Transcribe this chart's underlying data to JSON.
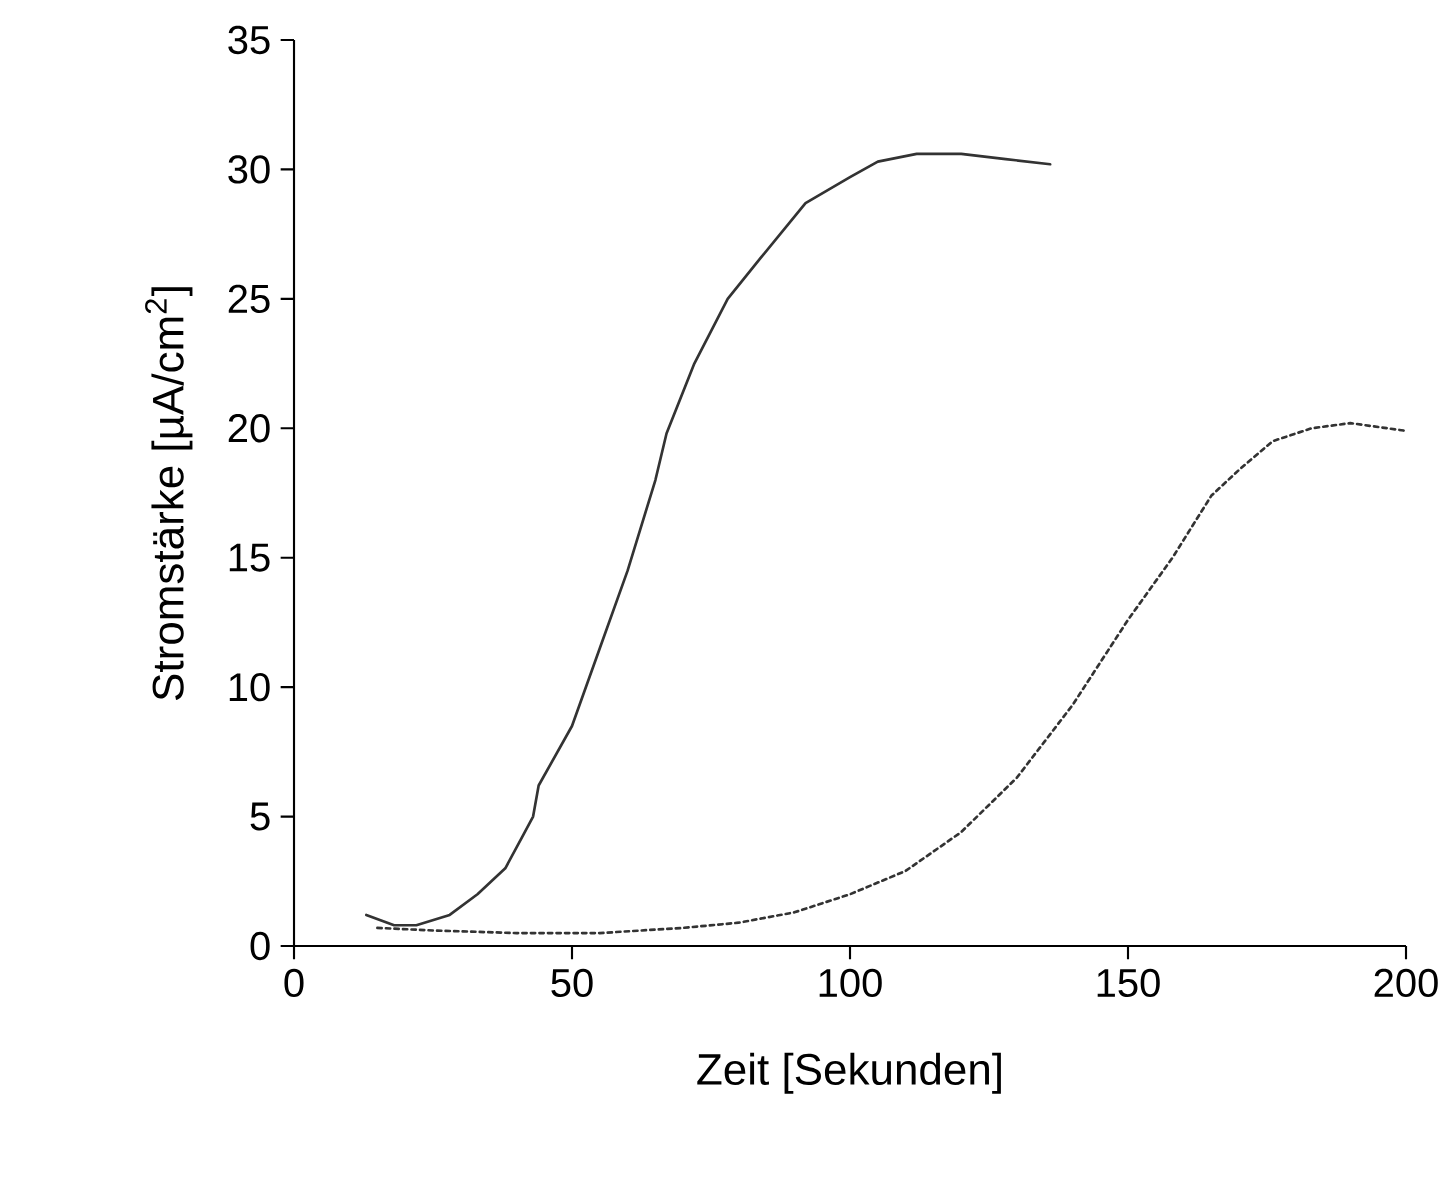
{
  "chart_data": {
    "type": "line",
    "xlabel": "Zeit [Sekunden]",
    "ylabel": "Stromstärke [µA/cm$^{2}$]",
    "xlim": [
      0,
      200
    ],
    "ylim": [
      0,
      35
    ],
    "xticks": [
      0,
      50,
      100,
      150,
      200
    ],
    "yticks": [
      0,
      5,
      10,
      15,
      20,
      25,
      30,
      35
    ],
    "grid": false,
    "marker": "none",
    "series": [
      {
        "color": "#333333",
        "line_style": "solid",
        "x": [
          13,
          18,
          22,
          28,
          33,
          38,
          41,
          43,
          44,
          50,
          55,
          60,
          65,
          67,
          72,
          78,
          84,
          92,
          100,
          105,
          112,
          120,
          128,
          136
        ],
        "values": [
          1.2,
          0.8,
          0.8,
          1.2,
          2,
          3,
          4.2,
          5,
          6.2,
          8.5,
          11.5,
          14.5,
          18,
          19.8,
          22.5,
          25,
          26.6,
          28.7,
          29.7,
          30.3,
          30.6,
          30.6,
          30.4,
          30.2
        ]
      },
      {
        "color": "#333333",
        "line_style": "dotted",
        "x": [
          15,
          25,
          40,
          55,
          70,
          80,
          90,
          100,
          110,
          120,
          130,
          140,
          150,
          158,
          165,
          170,
          176,
          183,
          190,
          200
        ],
        "values": [
          0.7,
          0.6,
          0.5,
          0.5,
          0.7,
          0.9,
          1.3,
          2.0,
          2.9,
          4.4,
          6.5,
          9.3,
          12.6,
          15.0,
          17.4,
          18.4,
          19.5,
          20.0,
          20.2,
          19.9
        ]
      }
    ]
  }
}
